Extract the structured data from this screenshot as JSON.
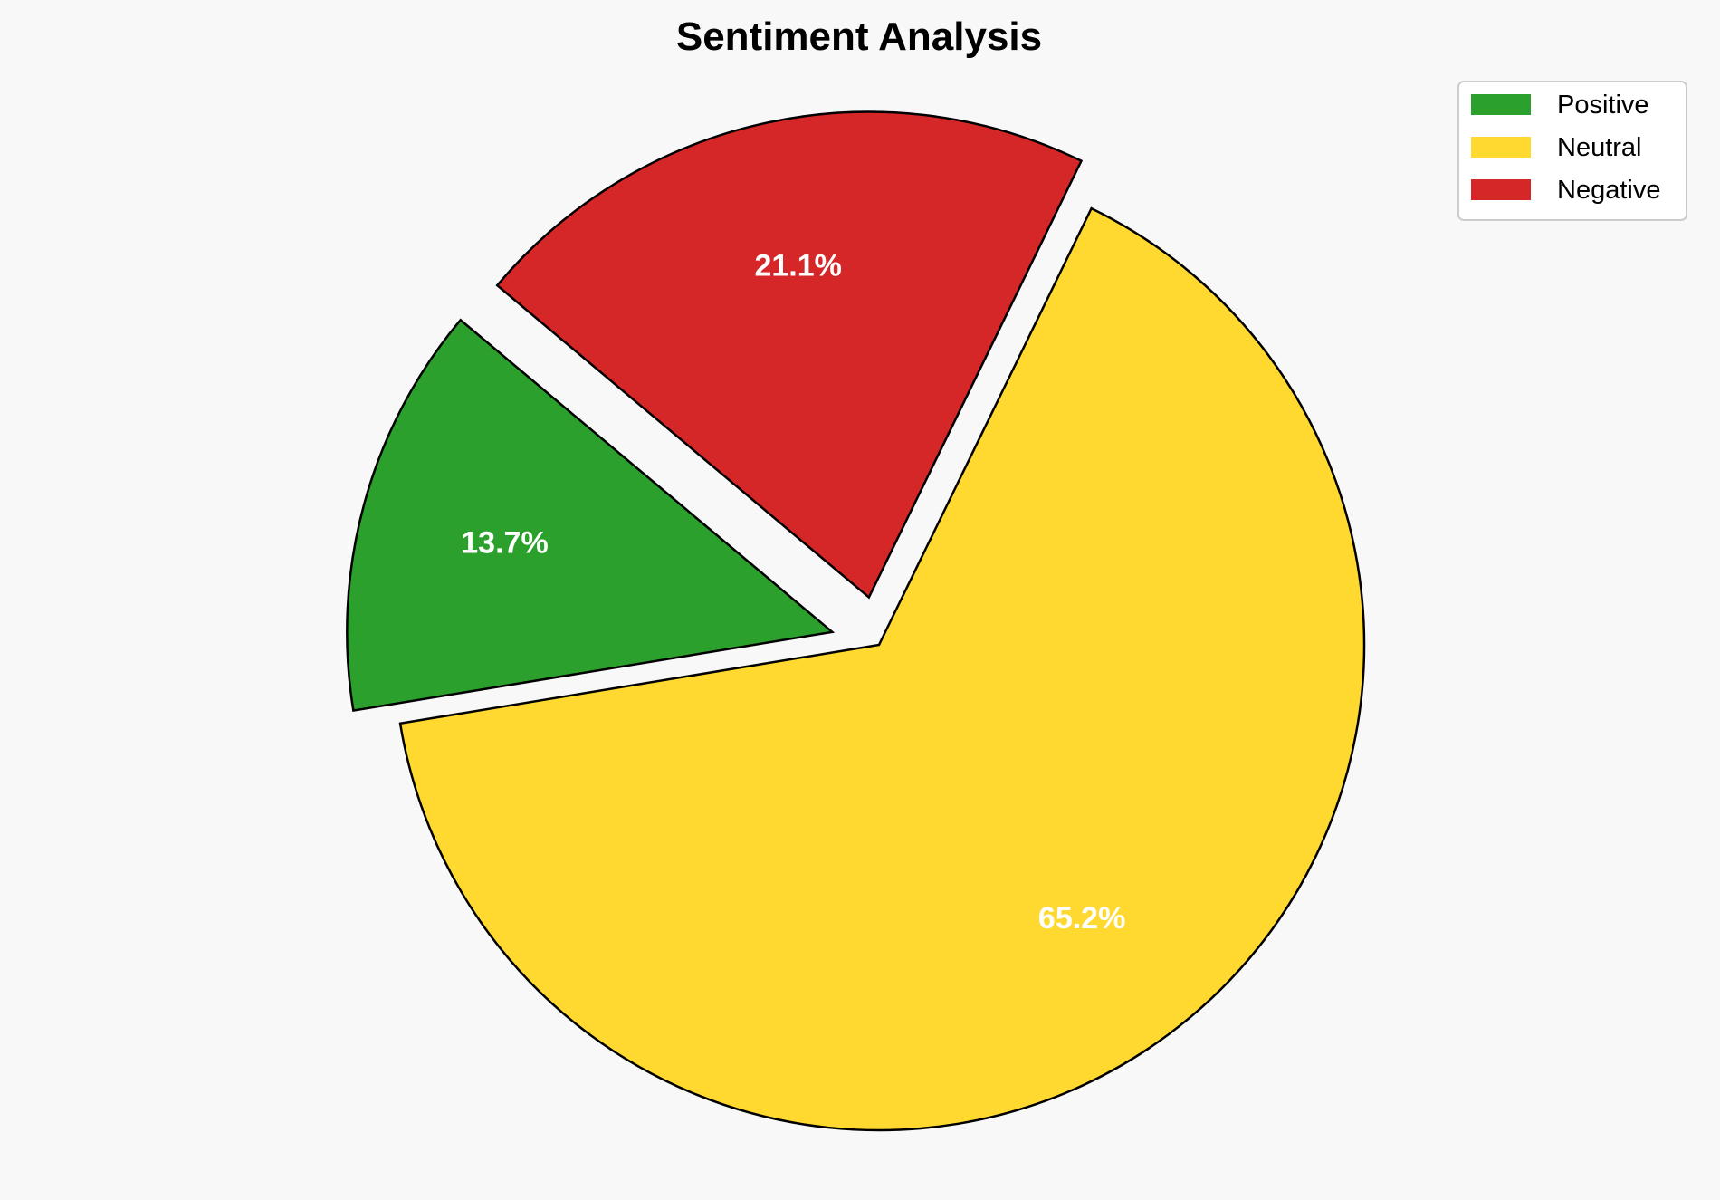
{
  "chart_data": {
    "type": "pie",
    "title": "Sentiment Analysis",
    "categories": [
      "Positive",
      "Neutral",
      "Negative"
    ],
    "values": [
      13.7,
      65.2,
      21.1
    ],
    "labels": [
      "13.7%",
      "65.2%",
      "21.1%"
    ],
    "colors": [
      "#2ca02c",
      "#ffd92f",
      "#d62728"
    ],
    "explode": [
      0.1,
      0,
      0.1
    ],
    "startangle": 140,
    "counterclock": true,
    "pctdistance": 0.7,
    "edgecolor": "#000000",
    "background": "#f8f8f8",
    "legend": {
      "placement": "top-right",
      "entries": [
        "Positive",
        "Neutral",
        "Negative"
      ]
    }
  }
}
